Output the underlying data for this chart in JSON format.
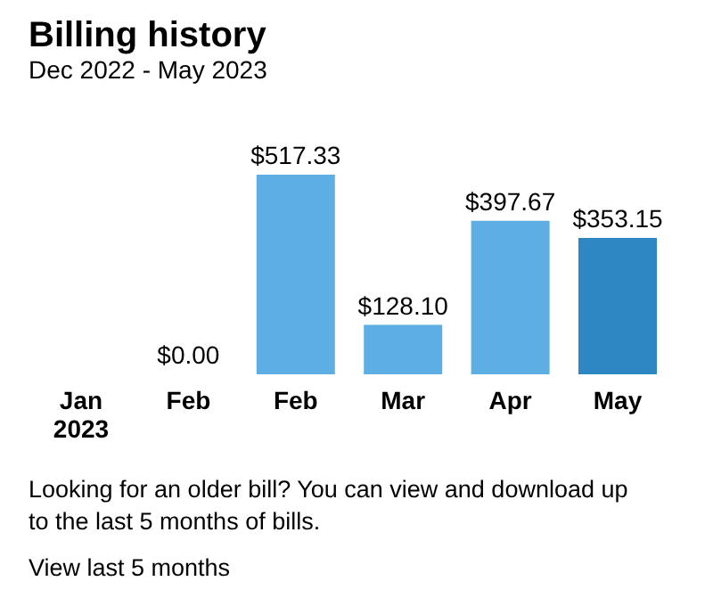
{
  "chart_data": {
    "type": "bar",
    "title": "Billing history",
    "subtitle": "Dec 2022  -  May 2023",
    "categories": [
      "Jan\n2023",
      "Feb",
      "Feb",
      "Mar",
      "Apr",
      "May"
    ],
    "values": [
      null,
      0,
      517.33,
      128.1,
      397.67,
      353.15
    ],
    "value_labels": [
      null,
      "$0.00",
      "$517.33",
      "$128.10",
      "$397.67",
      "$353.15"
    ],
    "colors": [
      "#5dafe3",
      "#5dafe3",
      "#5dafe3",
      "#5dafe3",
      "#5dafe3",
      "#2e86c3"
    ],
    "annotations": [
      "Looking for an older bill? You can view and download up to the last 5 months of bills.",
      "View last 5 months"
    ]
  }
}
